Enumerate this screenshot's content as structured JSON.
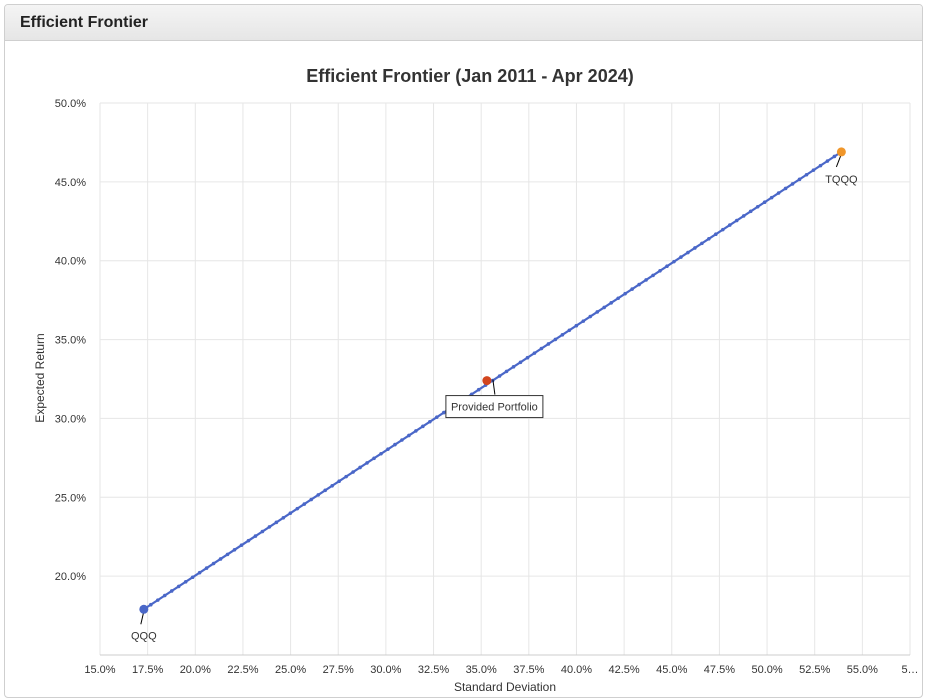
{
  "panel": {
    "title": "Efficient Frontier"
  },
  "chart_data": {
    "type": "scatter",
    "title": "Efficient Frontier (Jan 2011 - Apr 2024)",
    "xlabel": "Standard Deviation",
    "ylabel": "Expected Return",
    "xlim": [
      15.0,
      57.5
    ],
    "ylim": [
      15.0,
      50.0
    ],
    "xticks": [
      "15.0%",
      "17.5%",
      "20.0%",
      "22.5%",
      "25.0%",
      "27.5%",
      "30.0%",
      "32.5%",
      "35.0%",
      "37.5%",
      "40.0%",
      "42.5%",
      "45.0%",
      "47.5%",
      "50.0%",
      "52.5%",
      "55.0%",
      "5…"
    ],
    "yticks": [
      "20.0%",
      "25.0%",
      "30.0%",
      "35.0%",
      "40.0%",
      "45.0%",
      "50.0%"
    ],
    "grid": true,
    "series": [
      {
        "x": [
          17.3,
          53.9
        ],
        "y": [
          17.9,
          46.9
        ],
        "points": 101,
        "color": "#4a67c8"
      }
    ],
    "points": [
      {
        "label": "QQQ",
        "x": 17.3,
        "y": 17.9,
        "color": "#4a67c8"
      },
      {
        "label": "TQQQ",
        "x": 53.9,
        "y": 46.9,
        "color": "#f0962a"
      },
      {
        "label": "Provided Portfolio",
        "x": 35.3,
        "y": 32.4,
        "color": "#d2451e"
      }
    ]
  }
}
